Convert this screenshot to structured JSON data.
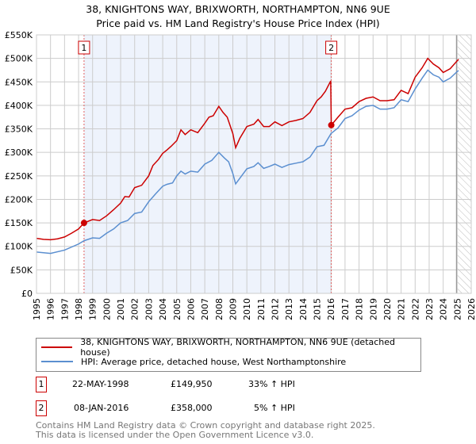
{
  "chart_data": {
    "type": "line",
    "title": "38, KNIGHTONS WAY, BRIXWORTH, NORTHAMPTON, NN6 9UE",
    "subtitle": "Price paid vs. HM Land Registry's House Price Index (HPI)",
    "xlim": [
      1995,
      2026
    ],
    "ylim": [
      0,
      550000
    ],
    "yticks": [
      0,
      50000,
      100000,
      150000,
      200000,
      250000,
      300000,
      350000,
      400000,
      450000,
      500000,
      550000
    ],
    "ytick_labels": [
      "£0",
      "£50K",
      "£100K",
      "£150K",
      "£200K",
      "£250K",
      "£300K",
      "£350K",
      "£400K",
      "£450K",
      "£500K",
      "£550K"
    ],
    "xticks": [
      1995,
      1996,
      1997,
      1998,
      1999,
      2000,
      2001,
      2002,
      2003,
      2004,
      2005,
      2006,
      2007,
      2008,
      2009,
      2010,
      2011,
      2012,
      2013,
      2014,
      2015,
      2016,
      2017,
      2018,
      2019,
      2020,
      2021,
      2022,
      2023,
      2024,
      2025,
      2026
    ],
    "grid": true,
    "shaded_range": [
      1998.39,
      2016.02
    ],
    "hatched_from": 2025.0,
    "series": [
      {
        "name": "38, KNIGHTONS WAY, BRIXWORTH, NORTHAMPTON, NN6 9UE (detached house)",
        "color": "#cc0000",
        "x": [
          1995,
          1995.5,
          1996,
          1996.5,
          1997,
          1997.5,
          1998,
          1998.39,
          1999,
          1999.5,
          2000,
          2000.5,
          2001,
          2001.3,
          2001.6,
          2002,
          2002.5,
          2003,
          2003.3,
          2003.7,
          2004,
          2004.3,
          2004.6,
          2005,
          2005.3,
          2005.6,
          2006,
          2006.5,
          2007,
          2007.3,
          2007.6,
          2008,
          2008.3,
          2008.6,
          2009,
          2009.2,
          2009.5,
          2010,
          2010.5,
          2010.8,
          2011.2,
          2011.6,
          2012,
          2012.5,
          2013,
          2013.5,
          2014,
          2014.5,
          2015,
          2015.3,
          2015.6,
          2015.98,
          2016.02,
          2016.5,
          2017,
          2017.5,
          2018,
          2018.5,
          2019,
          2019.5,
          2020,
          2020.5,
          2021,
          2021.5,
          2022,
          2022.5,
          2022.9,
          2023.3,
          2023.7,
          2024,
          2024.5,
          2025,
          2025.1
        ],
        "y": [
          117000,
          115000,
          114000,
          116000,
          120000,
          128000,
          137000,
          149950,
          157000,
          155000,
          165000,
          178000,
          192000,
          206000,
          205000,
          225000,
          230000,
          250000,
          272000,
          285000,
          298000,
          305000,
          313000,
          325000,
          348000,
          338000,
          348000,
          342000,
          362000,
          375000,
          378000,
          398000,
          385000,
          375000,
          340000,
          310000,
          330000,
          355000,
          360000,
          370000,
          355000,
          355000,
          365000,
          357000,
          365000,
          368000,
          372000,
          385000,
          410000,
          418000,
          430000,
          452000,
          358000,
          375000,
          392000,
          395000,
          408000,
          415000,
          418000,
          410000,
          410000,
          412000,
          432000,
          425000,
          460000,
          480000,
          500000,
          488000,
          480000,
          470000,
          478000,
          495000,
          498000
        ]
      },
      {
        "name": "HPI: Average price, detached house, West Northamptonshire",
        "color": "#5b8fd0",
        "x": [
          1995,
          1996,
          1997,
          1998,
          1998.39,
          1999,
          1999.5,
          2000,
          2000.5,
          2001,
          2001.5,
          2002,
          2002.5,
          2003,
          2003.5,
          2004,
          2004.3,
          2004.7,
          2005,
          2005.3,
          2005.6,
          2006,
          2006.5,
          2007,
          2007.5,
          2008,
          2008.4,
          2008.7,
          2009,
          2009.2,
          2009.5,
          2010,
          2010.5,
          2010.8,
          2011.2,
          2011.6,
          2012,
          2012.5,
          2013,
          2013.5,
          2014,
          2014.5,
          2015,
          2015.5,
          2016,
          2016.5,
          2017,
          2017.5,
          2018,
          2018.5,
          2019,
          2019.5,
          2020,
          2020.5,
          2021,
          2021.5,
          2022,
          2022.5,
          2022.9,
          2023.3,
          2023.7,
          2024,
          2024.5,
          2025,
          2025.1
        ],
        "y": [
          88000,
          85000,
          92000,
          105000,
          112000,
          118000,
          117000,
          128000,
          137000,
          150000,
          155000,
          170000,
          173000,
          195000,
          212000,
          228000,
          232000,
          235000,
          250000,
          260000,
          254000,
          260000,
          258000,
          275000,
          283000,
          300000,
          288000,
          280000,
          255000,
          233000,
          245000,
          265000,
          270000,
          278000,
          266000,
          270000,
          275000,
          268000,
          274000,
          277000,
          280000,
          290000,
          312000,
          315000,
          340000,
          352000,
          372000,
          378000,
          390000,
          398000,
          400000,
          392000,
          392000,
          395000,
          412000,
          408000,
          435000,
          458000,
          475000,
          465000,
          460000,
          450000,
          458000,
          472000,
          474000
        ]
      }
    ],
    "sales": [
      {
        "label": "1",
        "date": "22-MAY-1998",
        "x": 1998.39,
        "price": "£149,950",
        "value": 149950,
        "hpi": "33% ↑ HPI"
      },
      {
        "label": "2",
        "date": "08-JAN-2016",
        "x": 2016.02,
        "price": "£358,000",
        "value": 358000,
        "hpi": "5% ↑ HPI"
      }
    ]
  },
  "footer": {
    "line1": "Contains HM Land Registry data © Crown copyright and database right 2025.",
    "line2": "This data is licensed under the Open Government Licence v3.0."
  }
}
